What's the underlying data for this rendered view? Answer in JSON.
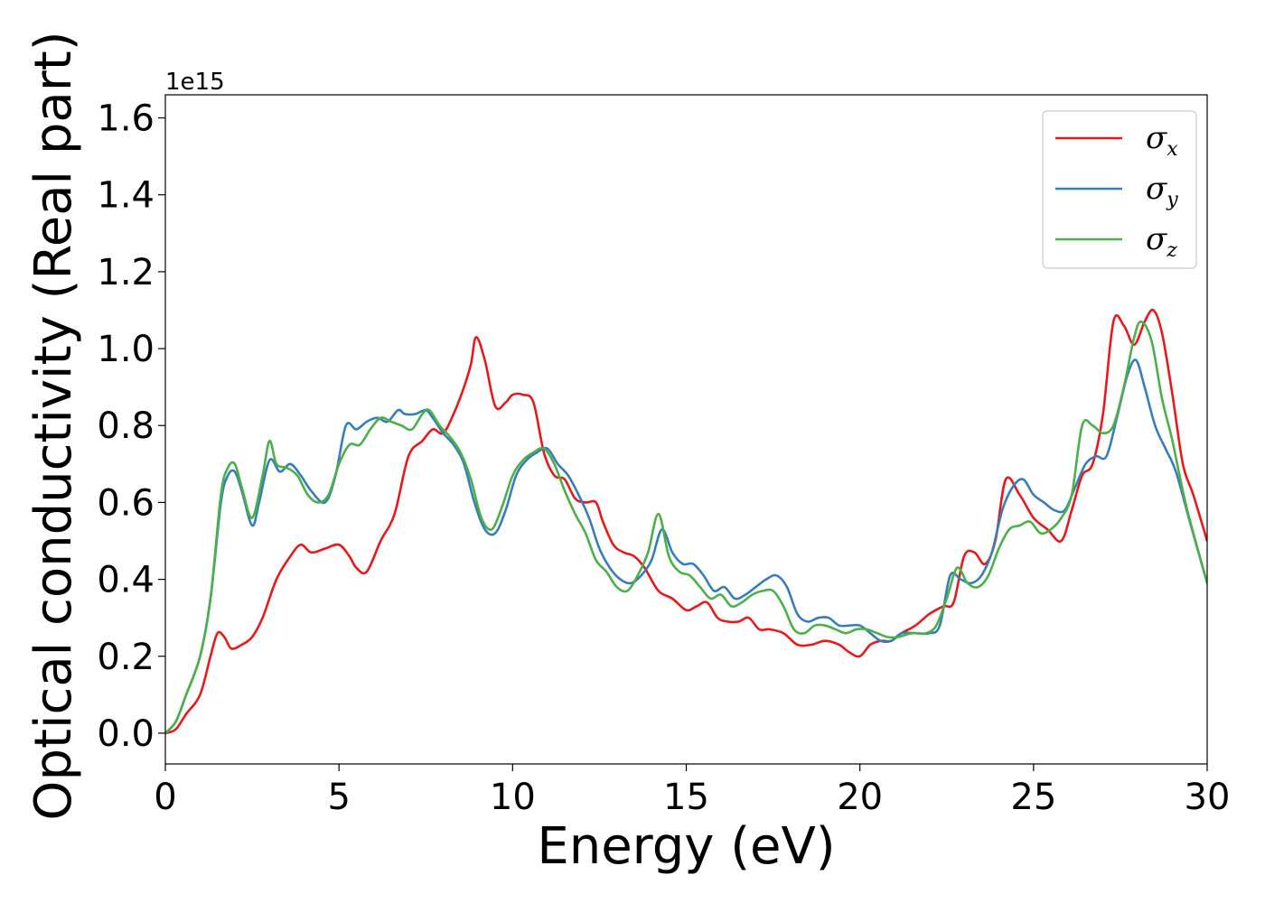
{
  "chart_data": {
    "type": "line",
    "title": "",
    "xlabel": "Energy (eV)",
    "ylabel": "Optical conductivity (Real part)",
    "y_offset_label": "1e15",
    "xlim": [
      0,
      30
    ],
    "ylim": [
      -0.08,
      1.66
    ],
    "xticks": [
      0,
      5,
      10,
      15,
      20,
      25,
      30
    ],
    "xtick_labels": [
      "0",
      "5",
      "10",
      "15",
      "20",
      "25",
      "30"
    ],
    "yticks": [
      0.0,
      0.2,
      0.4,
      0.6,
      0.8,
      1.0,
      1.2,
      1.4,
      1.6
    ],
    "ytick_labels": [
      "0.0",
      "0.2",
      "0.4",
      "0.6",
      "0.8",
      "1.0",
      "1.2",
      "1.4",
      "1.6"
    ],
    "grid": false,
    "legend_position": "top-right",
    "series": [
      {
        "name": "σx",
        "symbol": "σ",
        "subscript": "x",
        "color": "#e41a1c",
        "x": [
          0,
          0.3,
          0.6,
          1.0,
          1.3,
          1.5,
          1.7,
          1.9,
          2.2,
          2.5,
          2.8,
          3.2,
          3.6,
          3.9,
          4.2,
          4.6,
          5.0,
          5.3,
          5.5,
          5.8,
          6.2,
          6.6,
          7.0,
          7.4,
          7.7,
          8.0,
          8.3,
          8.6,
          8.8,
          8.95,
          9.2,
          9.5,
          9.8,
          10.0,
          10.3,
          10.6,
          10.9,
          11.2,
          11.5,
          11.8,
          12.1,
          12.4,
          12.6,
          12.9,
          13.2,
          13.5,
          13.8,
          14.2,
          14.6,
          15.0,
          15.3,
          15.6,
          15.9,
          16.2,
          16.5,
          16.8,
          17.1,
          17.4,
          17.8,
          18.2,
          18.6,
          19.0,
          19.4,
          19.7,
          20.0,
          20.3,
          20.6,
          20.9,
          21.2,
          21.6,
          22.0,
          22.4,
          22.7,
          23.0,
          23.3,
          23.6,
          23.9,
          24.2,
          24.6,
          25.0,
          25.4,
          25.8,
          26.1,
          26.4,
          26.7,
          27.0,
          27.3,
          27.6,
          27.9,
          28.2,
          28.45,
          28.7,
          29.0,
          29.3,
          29.6,
          30.0
        ],
        "values": [
          0.0,
          0.01,
          0.05,
          0.1,
          0.2,
          0.26,
          0.25,
          0.22,
          0.23,
          0.25,
          0.3,
          0.4,
          0.46,
          0.49,
          0.47,
          0.48,
          0.49,
          0.46,
          0.43,
          0.42,
          0.5,
          0.57,
          0.72,
          0.76,
          0.79,
          0.78,
          0.83,
          0.9,
          0.96,
          1.03,
          0.97,
          0.85,
          0.86,
          0.88,
          0.88,
          0.86,
          0.73,
          0.67,
          0.66,
          0.61,
          0.6,
          0.6,
          0.55,
          0.49,
          0.47,
          0.46,
          0.43,
          0.37,
          0.35,
          0.32,
          0.33,
          0.34,
          0.3,
          0.29,
          0.29,
          0.3,
          0.27,
          0.27,
          0.26,
          0.23,
          0.23,
          0.24,
          0.23,
          0.21,
          0.2,
          0.23,
          0.24,
          0.24,
          0.26,
          0.28,
          0.31,
          0.33,
          0.34,
          0.46,
          0.47,
          0.44,
          0.5,
          0.66,
          0.62,
          0.56,
          0.53,
          0.5,
          0.58,
          0.67,
          0.7,
          0.83,
          1.07,
          1.06,
          1.01,
          1.07,
          1.1,
          1.04,
          0.88,
          0.7,
          0.62,
          0.5
        ]
      },
      {
        "name": "σy",
        "symbol": "σ",
        "subscript": "y",
        "color": "#377eb8",
        "x": [
          0,
          0.3,
          0.6,
          1.0,
          1.3,
          1.6,
          1.8,
          2.0,
          2.2,
          2.5,
          2.7,
          3.0,
          3.3,
          3.6,
          3.9,
          4.2,
          4.6,
          4.9,
          5.2,
          5.5,
          5.8,
          6.1,
          6.4,
          6.7,
          6.9,
          7.2,
          7.5,
          7.7,
          8.0,
          8.3,
          8.6,
          8.9,
          9.2,
          9.5,
          9.8,
          10.1,
          10.4,
          10.7,
          11.0,
          11.3,
          11.6,
          11.9,
          12.2,
          12.5,
          12.8,
          13.1,
          13.4,
          13.7,
          14.0,
          14.3,
          14.6,
          14.9,
          15.2,
          15.5,
          15.8,
          16.1,
          16.4,
          16.7,
          17.0,
          17.3,
          17.6,
          17.9,
          18.2,
          18.5,
          18.8,
          19.1,
          19.4,
          19.7,
          20.0,
          20.3,
          20.6,
          20.9,
          21.2,
          21.6,
          22.0,
          22.3,
          22.6,
          22.9,
          23.2,
          23.5,
          23.8,
          24.1,
          24.4,
          24.7,
          25.0,
          25.3,
          25.6,
          25.9,
          26.2,
          26.5,
          26.8,
          27.1,
          27.4,
          27.7,
          27.95,
          28.2,
          28.5,
          28.8,
          29.1,
          29.5,
          30.0
        ],
        "values": [
          0.0,
          0.03,
          0.1,
          0.2,
          0.35,
          0.6,
          0.67,
          0.68,
          0.63,
          0.54,
          0.6,
          0.71,
          0.68,
          0.7,
          0.67,
          0.63,
          0.6,
          0.67,
          0.8,
          0.79,
          0.81,
          0.82,
          0.81,
          0.84,
          0.83,
          0.83,
          0.84,
          0.82,
          0.78,
          0.75,
          0.7,
          0.6,
          0.53,
          0.52,
          0.58,
          0.67,
          0.71,
          0.73,
          0.74,
          0.7,
          0.67,
          0.62,
          0.56,
          0.48,
          0.43,
          0.4,
          0.39,
          0.41,
          0.45,
          0.53,
          0.47,
          0.44,
          0.44,
          0.41,
          0.37,
          0.38,
          0.35,
          0.36,
          0.38,
          0.4,
          0.41,
          0.38,
          0.31,
          0.29,
          0.3,
          0.3,
          0.28,
          0.28,
          0.28,
          0.26,
          0.24,
          0.24,
          0.26,
          0.26,
          0.26,
          0.28,
          0.41,
          0.4,
          0.39,
          0.41,
          0.47,
          0.58,
          0.64,
          0.66,
          0.62,
          0.6,
          0.58,
          0.58,
          0.64,
          0.7,
          0.72,
          0.72,
          0.82,
          0.93,
          0.97,
          0.9,
          0.8,
          0.74,
          0.68,
          0.55,
          0.39
        ]
      },
      {
        "name": "σz",
        "symbol": "σ",
        "subscript": "z",
        "color": "#4daf4a",
        "x": [
          0,
          0.3,
          0.6,
          1.0,
          1.3,
          1.6,
          1.8,
          2.0,
          2.2,
          2.5,
          2.8,
          3.0,
          3.2,
          3.5,
          3.8,
          4.1,
          4.4,
          4.7,
          5.0,
          5.3,
          5.6,
          5.9,
          6.2,
          6.5,
          6.8,
          7.1,
          7.4,
          7.6,
          7.9,
          8.2,
          8.5,
          8.8,
          9.1,
          9.4,
          9.7,
          10.0,
          10.3,
          10.6,
          10.9,
          11.2,
          11.5,
          11.8,
          12.1,
          12.4,
          12.7,
          13.0,
          13.3,
          13.6,
          13.9,
          14.2,
          14.5,
          14.8,
          15.1,
          15.4,
          15.7,
          16.0,
          16.3,
          16.6,
          16.9,
          17.2,
          17.5,
          17.8,
          18.1,
          18.4,
          18.7,
          19.0,
          19.3,
          19.6,
          19.9,
          20.2,
          20.5,
          20.8,
          21.1,
          21.5,
          21.9,
          22.2,
          22.5,
          22.8,
          23.1,
          23.4,
          23.7,
          24.0,
          24.3,
          24.6,
          24.9,
          25.2,
          25.5,
          25.8,
          26.1,
          26.4,
          26.7,
          27.0,
          27.3,
          27.6,
          27.9,
          28.1,
          28.4,
          28.7,
          29.0,
          29.4,
          30.0
        ],
        "values": [
          0.0,
          0.03,
          0.1,
          0.2,
          0.35,
          0.62,
          0.69,
          0.7,
          0.64,
          0.56,
          0.67,
          0.76,
          0.7,
          0.69,
          0.67,
          0.62,
          0.6,
          0.62,
          0.7,
          0.75,
          0.75,
          0.79,
          0.82,
          0.81,
          0.8,
          0.79,
          0.83,
          0.84,
          0.8,
          0.77,
          0.73,
          0.66,
          0.56,
          0.53,
          0.59,
          0.67,
          0.71,
          0.73,
          0.74,
          0.7,
          0.63,
          0.57,
          0.52,
          0.45,
          0.42,
          0.38,
          0.37,
          0.41,
          0.47,
          0.57,
          0.46,
          0.42,
          0.41,
          0.38,
          0.35,
          0.36,
          0.33,
          0.34,
          0.36,
          0.37,
          0.37,
          0.33,
          0.27,
          0.26,
          0.28,
          0.28,
          0.27,
          0.26,
          0.27,
          0.27,
          0.26,
          0.25,
          0.25,
          0.26,
          0.26,
          0.28,
          0.35,
          0.43,
          0.39,
          0.38,
          0.41,
          0.48,
          0.53,
          0.54,
          0.55,
          0.52,
          0.53,
          0.56,
          0.62,
          0.8,
          0.8,
          0.78,
          0.8,
          0.9,
          1.03,
          1.07,
          1.02,
          0.87,
          0.76,
          0.59,
          0.39
        ]
      }
    ]
  }
}
